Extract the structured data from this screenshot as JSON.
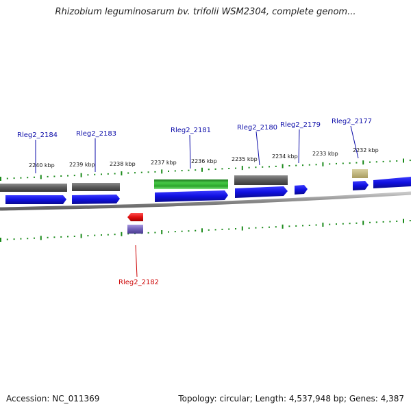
{
  "title": "Rhizobium leguminosarum bv. trifolii WSM2304, complete genom...",
  "footer": {
    "accession": "Accession: NC_011369",
    "summary": "Topology: circular; Length: 4,537,948 bp; Genes: 4,387"
  },
  "colors": {
    "label_plus": "#0a0aa8",
    "label_minus": "#cc0000",
    "tick_green": "#1a8a1a",
    "backbone": "#8a8a8a",
    "cds_blue": "#1414e6",
    "gene_gray": "#606060",
    "rrna_green": "#2fae2f",
    "ncrna_tan": "#b8ae78",
    "cds_red": "#e61414",
    "gene_purple": "#7a66c0"
  },
  "kbp_ticks": [
    "2240 kbp",
    "2239 kbp",
    "2238 kbp",
    "2237 kbp",
    "2236 kbp",
    "2235 kbp",
    "2234 kbp",
    "2233 kbp",
    "2232 kbp"
  ],
  "gene_labels_top": [
    "Rleg2_2184",
    "Rleg2_2183",
    "Rleg2_2181",
    "Rleg2_2180",
    "Rleg2_2179",
    "Rleg2_2177"
  ],
  "gene_labels_bottom": [
    "Rleg2_2182"
  ]
}
